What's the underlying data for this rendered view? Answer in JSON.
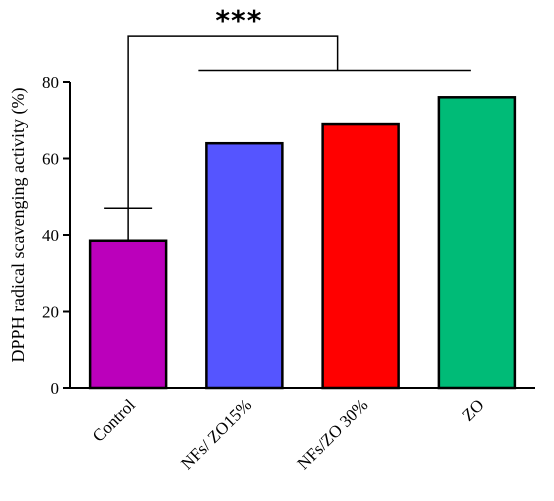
{
  "chart_data": {
    "type": "bar",
    "title": "",
    "xlabel": "",
    "ylabel": "DPPH radical scavenging activity (%)",
    "ylim": [
      0,
      80
    ],
    "yticks": [
      0,
      20,
      40,
      60,
      80
    ],
    "grid": false,
    "categories": [
      "Control",
      "NFs/ ZO15%",
      "NFs/ZO 30%",
      "ZO"
    ],
    "values": [
      38.5,
      64,
      69,
      76
    ],
    "error_upper": [
      47,
      64,
      69,
      76
    ],
    "colors": [
      "#bb00bb",
      "#5555ff",
      "#ff0000",
      "#00bb77"
    ],
    "significance": {
      "label": "***",
      "bracket_top": 92,
      "group_line": 83,
      "group_from": "NFs/ ZO15%",
      "group_to": "ZO"
    }
  }
}
